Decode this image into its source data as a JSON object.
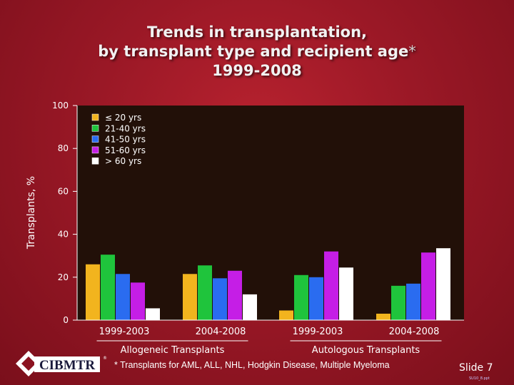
{
  "title": {
    "line1": "Trends in transplantation,",
    "line2": "by transplant type and recipient age",
    "asterisk": "*",
    "line3": "1999-2008"
  },
  "chart_data": {
    "type": "bar",
    "ylabel": "Transplants, %",
    "ylim": [
      0,
      100
    ],
    "yticks": [
      0,
      20,
      40,
      60,
      80,
      100
    ],
    "groups": [
      {
        "label": "Allogeneic Transplants",
        "periods": [
          "1999-2003",
          "2004-2008"
        ]
      },
      {
        "label": "Autologous Transplants",
        "periods": [
          "1999-2003",
          "2004-2008"
        ]
      }
    ],
    "categories": [
      "Allogeneic 1999-2003",
      "Allogeneic 2004-2008",
      "Autologous 1999-2003",
      "Autologous 2004-2008"
    ],
    "series": [
      {
        "name": "≤ 20 yrs",
        "color": "#f2b41e",
        "values": [
          26,
          21.5,
          4.5,
          3
        ]
      },
      {
        "name": "21-40 yrs",
        "color": "#1fc43c",
        "values": [
          30.5,
          25.5,
          21,
          16
        ]
      },
      {
        "name": "41-50 yrs",
        "color": "#2a6cf0",
        "values": [
          21.5,
          19.5,
          20,
          17
        ]
      },
      {
        "name": "51-60 yrs",
        "color": "#c51ee6",
        "values": [
          17.5,
          23,
          32,
          31.5
        ]
      },
      {
        "name": "> 60 yrs",
        "color": "#ffffff",
        "values": [
          5.5,
          12,
          24.5,
          33.5
        ]
      }
    ],
    "legend_position": "top-left",
    "plot_background": "#221008"
  },
  "footnote": "* Transplants for AML, ALL, NHL, Hodgkin Disease, Multiple Myeloma",
  "slide_number": "Slide 7",
  "file_ref": "SU10_8.ppt",
  "logo": {
    "text": "CIBMTR",
    "registered": "®"
  }
}
